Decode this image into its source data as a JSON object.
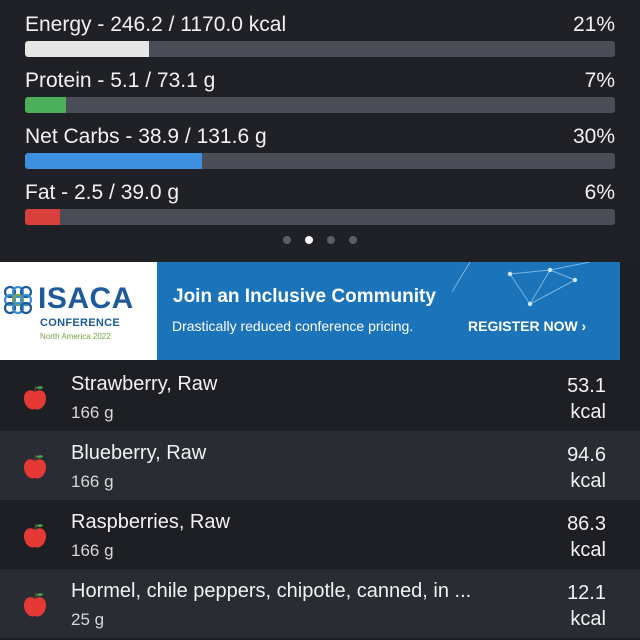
{
  "nutrients": [
    {
      "label": "Energy - 246.2 / 1170.0 kcal",
      "percent": "21%",
      "fill_fraction": 0.21,
      "color": "#e6e6e6"
    },
    {
      "label": "Protein - 5.1 / 73.1 g",
      "percent": "7%",
      "fill_fraction": 0.07,
      "color": "#4caf59"
    },
    {
      "label": "Net Carbs - 38.9 / 131.6 g",
      "percent": "30%",
      "fill_fraction": 0.3,
      "color": "#3d8fe0"
    },
    {
      "label": "Fat - 2.5 / 39.0 g",
      "percent": "6%",
      "fill_fraction": 0.06,
      "color": "#d8403c"
    }
  ],
  "pager": {
    "count": 4,
    "active_index": 1
  },
  "ad": {
    "brand": "ISACA",
    "conference": "CONFERENCE",
    "region": "North America 2022",
    "headline": "Join an Inclusive Community",
    "subtext": "Drastically reduced conference pricing.",
    "cta": "REGISTER NOW ›",
    "background_color": "#1b73b9"
  },
  "foods": [
    {
      "name": "Strawberry, Raw",
      "amount": "166 g",
      "kcal": "53.1",
      "unit": "kcal",
      "icon": "apple-icon"
    },
    {
      "name": "Blueberry, Raw",
      "amount": "166 g",
      "kcal": "94.6",
      "unit": "kcal",
      "icon": "apple-icon"
    },
    {
      "name": "Raspberries, Raw",
      "amount": "166 g",
      "kcal": "86.3",
      "unit": "kcal",
      "icon": "apple-icon"
    },
    {
      "name": "Hormel, chile peppers, chipotle, canned, in ...",
      "amount": "25 g",
      "kcal": "12.1",
      "unit": "kcal",
      "icon": "apple-icon"
    }
  ]
}
